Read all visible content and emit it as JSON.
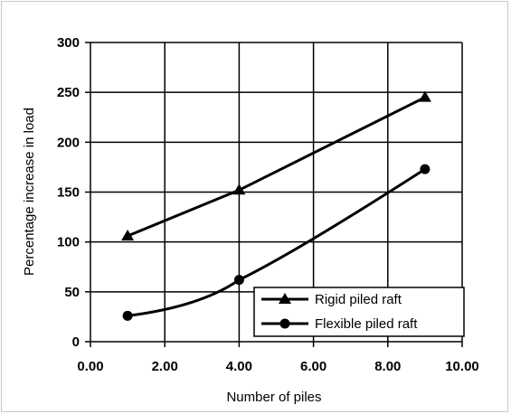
{
  "chart_data": {
    "type": "line",
    "title": "",
    "xlabel": "Number of piles",
    "ylabel": "Percentage increase in load",
    "xlim": [
      0,
      10
    ],
    "ylim": [
      0,
      300
    ],
    "x_ticks": [
      "0.00",
      "2.00",
      "4.00",
      "6.00",
      "8.00",
      "10.00"
    ],
    "y_ticks": [
      "0",
      "50",
      "100",
      "150",
      "200",
      "250",
      "300"
    ],
    "grid": true,
    "legend_position": "bottom-right",
    "series": [
      {
        "name": "Rigid piled raft",
        "marker": "triangle",
        "color": "#000000",
        "x": [
          1,
          4,
          9
        ],
        "y": [
          106,
          152,
          245
        ]
      },
      {
        "name": "Flexible piled raft",
        "marker": "circle",
        "color": "#000000",
        "x": [
          1,
          4,
          9
        ],
        "y": [
          26,
          62,
          173
        ]
      }
    ]
  }
}
